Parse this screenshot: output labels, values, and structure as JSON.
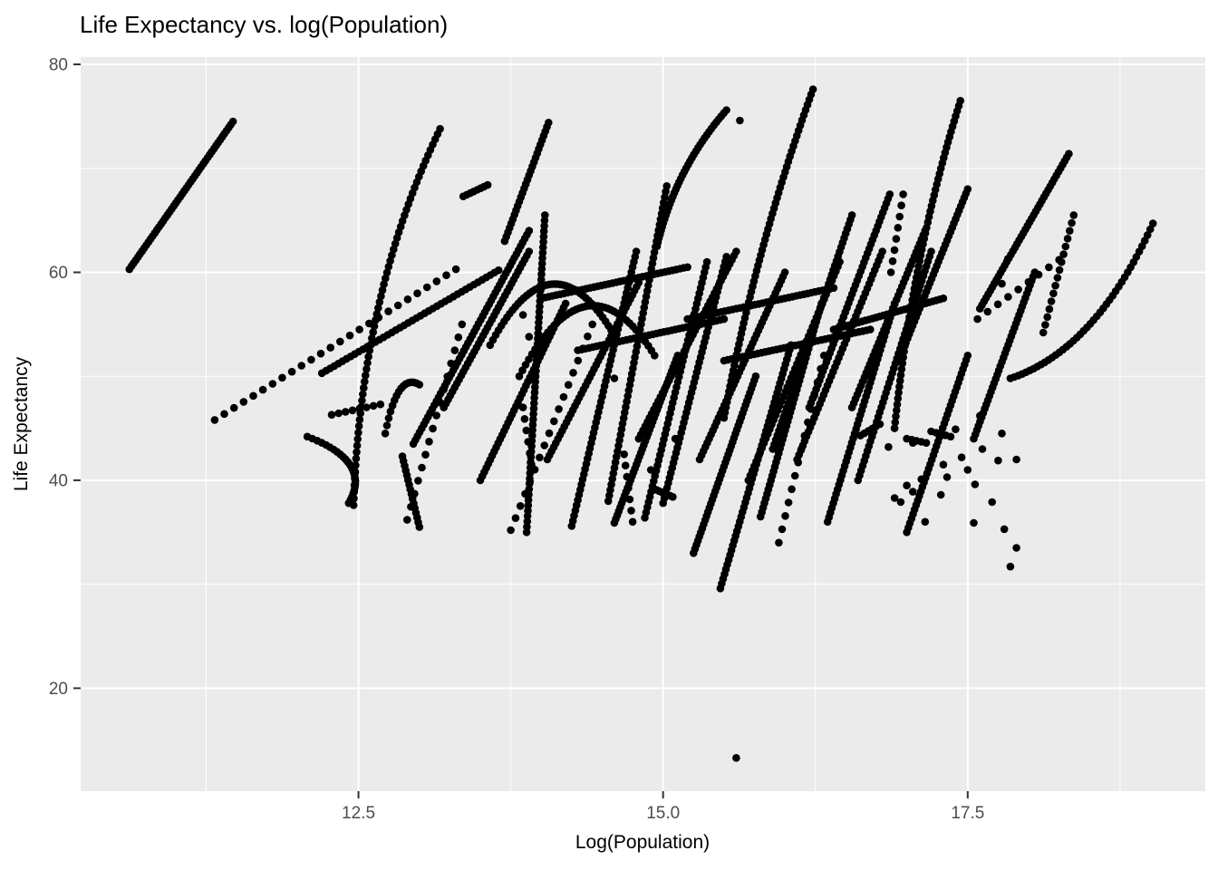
{
  "chart_data": {
    "type": "scatter",
    "title": "Life Expectancy vs. log(Population)",
    "xlabel": "Log(Population)",
    "ylabel": "Life Expectancy",
    "xlim": [
      10.22,
      19.45
    ],
    "ylim": [
      10.1,
      80.7
    ],
    "x_ticks": [
      12.5,
      15.0,
      17.5
    ],
    "x_tick_labels": [
      "12.5",
      "15.0",
      "17.5"
    ],
    "y_ticks": [
      20,
      40,
      60,
      80
    ],
    "y_tick_labels": [
      "20",
      "40",
      "60",
      "80"
    ],
    "x_minor_ticks": [
      11.25,
      13.75,
      16.25,
      18.75
    ],
    "y_minor_ticks": [
      30,
      50,
      70
    ],
    "grid": "white major and minor gridlines on grey panel, ggplot2 theme_grey",
    "legend": "none",
    "point_color": "#000000",
    "point_radius_px": 4.3,
    "panel_bg": "#EBEBEB",
    "grid_color": "#FFFFFF",
    "tick_label_color": "#4D4D4D",
    "tick_mark_color": "#333333",
    "description": "Black scatter points forming many upward-sloping per-country trajectories of life expectancy versus log(population). Trajectories are encoded as start/end (and optional bend control) points in data units with n dots interpolated along each; isolated points listed separately.",
    "trails": [
      {
        "p": [
          10.62,
          60.3,
          11.47,
          74.5
        ],
        "n": 50
      },
      {
        "p": [
          11.32,
          45.8,
          13.3,
          60.3
        ],
        "n": 26
      },
      {
        "p": [
          12.08,
          44.2,
          12.42,
          37.8
        ],
        "c": [
          12.62,
          41.8
        ],
        "n": 26
      },
      {
        "p": [
          12.46,
          37.6,
          13.17,
          73.8
        ],
        "c": [
          12.52,
          58.0
        ],
        "n": 64
      },
      {
        "p": [
          12.2,
          50.3,
          13.65,
          60.2
        ],
        "n": 44
      },
      {
        "p": [
          12.9,
          36.2,
          13.35,
          55.0
        ],
        "n": 16
      },
      {
        "p": [
          13.36,
          67.3,
          13.56,
          68.4
        ],
        "n": 8
      },
      {
        "p": [
          12.95,
          43.5,
          13.9,
          64.0
        ],
        "n": 56
      },
      {
        "p": [
          13.7,
          63.0,
          14.06,
          74.4
        ],
        "n": 28
      },
      {
        "p": [
          13.88,
          35.0,
          14.03,
          65.5
        ],
        "n": 60
      },
      {
        "p": [
          13.58,
          53.0,
          14.62,
          53.5
        ],
        "c": [
          14.1,
          64.5
        ],
        "n": 46
      },
      {
        "p": [
          13.82,
          50.0,
          14.93,
          52.0
        ],
        "c": [
          14.38,
          62.5
        ],
        "n": 44
      },
      {
        "p": [
          13.75,
          35.2,
          14.42,
          55.0
        ],
        "n": 18
      },
      {
        "p": [
          14.25,
          35.6,
          14.78,
          62.0
        ],
        "n": 54
      },
      {
        "p": [
          14.55,
          38.0,
          15.03,
          68.3
        ],
        "n": 58
      },
      {
        "p": [
          14.85,
          36.4,
          15.36,
          61.0
        ],
        "n": 50
      },
      {
        "p": [
          15.0,
          37.8,
          15.52,
          61.5
        ],
        "n": 50
      },
      {
        "p": [
          15.47,
          29.6,
          16.05,
          53.0
        ],
        "n": 52
      },
      {
        "p": [
          14.95,
          62.5,
          15.52,
          75.6
        ],
        "c": [
          15.1,
          70.0
        ],
        "n": 40
      },
      {
        "p": [
          15.5,
          46.0,
          16.23,
          77.6
        ],
        "c": [
          15.75,
          62.0
        ],
        "n": 64
      },
      {
        "p": [
          15.9,
          43.0,
          16.55,
          65.5
        ],
        "n": 52
      },
      {
        "p": [
          16.2,
          47.0,
          16.86,
          67.5
        ],
        "n": 48
      },
      {
        "p": [
          16.9,
          45.0,
          17.44,
          76.5
        ],
        "c": [
          17.05,
          62.0
        ],
        "n": 60
      },
      {
        "p": [
          16.6,
          40.0,
          17.2,
          62.0
        ],
        "n": 48
      },
      {
        "p": [
          16.95,
          52.0,
          17.5,
          68.0
        ],
        "n": 40
      },
      {
        "p": [
          17.55,
          44.0,
          18.05,
          60.0
        ],
        "n": 40
      },
      {
        "p": [
          17.6,
          56.5,
          18.33,
          71.4
        ],
        "n": 44
      },
      {
        "p": [
          18.12,
          54.2,
          18.37,
          65.5
        ],
        "n": 16
      },
      {
        "p": [
          17.85,
          49.8,
          19.02,
          64.7
        ],
        "c": [
          18.55,
          52.5
        ],
        "n": 44
      },
      {
        "p": [
          15.95,
          34.0,
          16.32,
          52.0
        ],
        "n": 15
      },
      {
        "p": [
          14.6,
          35.9,
          15.12,
          52.0
        ],
        "n": 44
      },
      {
        "p": [
          15.25,
          33.0,
          15.76,
          50.0
        ],
        "n": 44
      },
      {
        "p": [
          15.8,
          36.5,
          16.3,
          57.0
        ],
        "n": 48
      },
      {
        "p": [
          16.35,
          36.0,
          16.9,
          57.0
        ],
        "n": 48
      },
      {
        "p": [
          14.0,
          57.5,
          15.2,
          60.5
        ],
        "n": 40
      },
      {
        "p": [
          15.2,
          55.5,
          16.4,
          58.5
        ],
        "n": 40
      },
      {
        "p": [
          16.4,
          54.5,
          17.3,
          57.5
        ],
        "n": 32
      },
      {
        "p": [
          14.3,
          52.5,
          15.5,
          55.5
        ],
        "n": 40
      },
      {
        "p": [
          15.5,
          51.5,
          16.7,
          54.5
        ],
        "n": 40
      },
      {
        "p": [
          13.5,
          40.0,
          14.2,
          57.0
        ],
        "n": 44
      },
      {
        "p": [
          14.05,
          42.0,
          14.8,
          59.0
        ],
        "n": 44
      },
      {
        "p": [
          15.3,
          42.0,
          16.0,
          60.0
        ],
        "n": 46
      },
      {
        "p": [
          15.7,
          40.0,
          16.45,
          61.0
        ],
        "n": 48
      },
      {
        "p": [
          16.1,
          42.0,
          16.8,
          62.0
        ],
        "n": 46
      },
      {
        "p": [
          14.8,
          44.0,
          15.6,
          62.0
        ],
        "n": 46
      },
      {
        "p": [
          16.55,
          47.0,
          17.15,
          64.0
        ],
        "n": 42
      },
      {
        "p": [
          13.2,
          47.0,
          13.9,
          62.0
        ],
        "n": 40
      },
      {
        "p": [
          12.72,
          44.5,
          13.0,
          49.2
        ],
        "c": [
          12.82,
          50.5
        ],
        "n": 16
      },
      {
        "p": [
          17.0,
          35.0,
          17.5,
          52.0
        ],
        "n": 40
      },
      {
        "p": [
          16.62,
          44.3,
          16.78,
          45.4
        ],
        "n": 6
      },
      {
        "p": [
          17.0,
          44.0,
          17.16,
          43.6
        ],
        "n": 5
      },
      {
        "p": [
          17.2,
          44.7,
          17.36,
          44.2
        ],
        "n": 5
      },
      {
        "p": [
          14.68,
          42.5,
          14.75,
          36.0
        ],
        "n": 7
      },
      {
        "p": [
          14.92,
          39.2,
          15.08,
          38.4
        ],
        "n": 8
      },
      {
        "p": [
          16.87,
          60.0,
          16.97,
          67.5
        ],
        "n": 8
      },
      {
        "p": [
          17.58,
          55.5,
          18.25,
          61.2
        ],
        "n": 9
      },
      {
        "p": [
          12.28,
          46.3,
          12.68,
          47.3
        ],
        "n": 8
      },
      {
        "p": [
          12.86,
          42.3,
          13.0,
          35.5
        ],
        "n": 16
      },
      {
        "p": [
          13.85,
          47.0,
          13.92,
          41.5
        ],
        "n": 6
      }
    ],
    "points": [
      [
        15.6,
        13.3
      ],
      [
        15.63,
        74.6
      ],
      [
        17.83,
        61.3
      ],
      [
        17.78,
        58.9
      ],
      [
        16.9,
        38.3
      ],
      [
        17.0,
        39.5
      ],
      [
        17.05,
        38.9
      ],
      [
        16.95,
        37.9
      ],
      [
        17.12,
        40.1
      ],
      [
        17.3,
        41.5
      ],
      [
        17.33,
        40.3
      ],
      [
        17.28,
        38.6
      ],
      [
        17.45,
        42.2
      ],
      [
        17.5,
        41.0
      ],
      [
        17.56,
        39.6
      ],
      [
        17.62,
        43.0
      ],
      [
        17.75,
        41.9
      ],
      [
        17.7,
        37.9
      ],
      [
        17.8,
        35.3
      ],
      [
        17.9,
        33.5
      ],
      [
        17.85,
        31.7
      ],
      [
        17.55,
        35.9
      ],
      [
        17.15,
        36.0
      ],
      [
        16.85,
        43.2
      ],
      [
        17.05,
        43.6
      ],
      [
        17.6,
        46.2
      ],
      [
        17.78,
        44.5
      ],
      [
        17.9,
        42.0
      ],
      [
        17.4,
        44.9
      ],
      [
        13.85,
        55.9
      ],
      [
        13.9,
        53.8
      ],
      [
        14.6,
        49.8
      ],
      [
        15.1,
        44.0
      ],
      [
        14.9,
        41.0
      ]
    ]
  }
}
